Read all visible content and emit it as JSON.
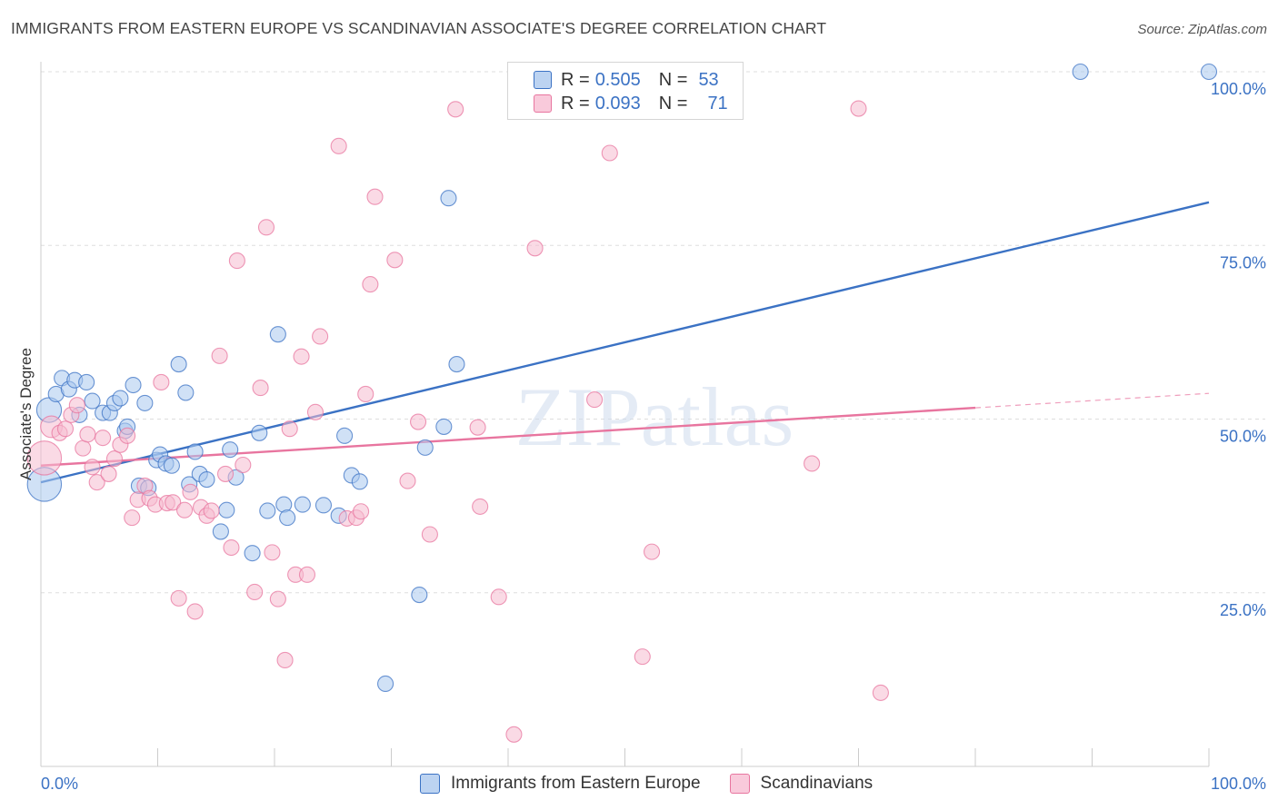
{
  "title": "IMMIGRANTS FROM EASTERN EUROPE VS SCANDINAVIAN ASSOCIATE'S DEGREE CORRELATION CHART",
  "source": "Source: ZipAtlas.com",
  "watermark": "ZIPatlas",
  "colors": {
    "blue": "#3b72c4",
    "blue_fill": "#aac8ee",
    "pink": "#e8759f",
    "pink_fill": "#f6bccf",
    "grid": "#dddddd"
  },
  "legend": {
    "rows": [
      {
        "r_label": "R =",
        "r_value": "0.505",
        "n_label": "N =",
        "n_value": "53",
        "color": "#3b72c4"
      },
      {
        "r_label": "R =",
        "r_value": "0.093",
        "n_label": "N =",
        "n_value": "71",
        "color": "#e8759f"
      }
    ]
  },
  "bottom_legend": [
    {
      "label": "Immigrants from Eastern Europe",
      "color": "#3b72c4"
    },
    {
      "label": "Scandinavians",
      "color": "#e8759f"
    }
  ],
  "chart_data": {
    "type": "scatter",
    "title": "IMMIGRANTS FROM EASTERN EUROPE VS SCANDINAVIAN ASSOCIATE'S DEGREE CORRELATION CHART",
    "xlabel": "",
    "ylabel": "Associate's Degree",
    "xlim": [
      0,
      100
    ],
    "ylim": [
      0,
      100
    ],
    "x_tick_labels": [
      "0.0%",
      "100.0%"
    ],
    "y_ticks": [
      25,
      50,
      75,
      100
    ],
    "y_tick_labels": [
      "25.0%",
      "50.0%",
      "75.0%",
      "100.0%"
    ],
    "grid": true,
    "series": [
      {
        "name": "Immigrants from Eastern Europe",
        "color": "#3b72c4",
        "fill": "#aac8ee",
        "regression": {
          "x0": 0,
          "y0": 40.9,
          "x1": 100,
          "y1": 81.2,
          "solid_until": 100
        },
        "points": [
          [
            0.3,
            40.6,
            2.2
          ],
          [
            0.7,
            51.3,
            1.6
          ],
          [
            1.3,
            53.6,
            1
          ],
          [
            1.8,
            55.9,
            1
          ],
          [
            2.4,
            54.3,
            1
          ],
          [
            2.9,
            55.6,
            1
          ],
          [
            3.3,
            50.6,
            1
          ],
          [
            3.9,
            55.3,
            1
          ],
          [
            4.4,
            52.6,
            1
          ],
          [
            5.3,
            50.9,
            1
          ],
          [
            5.9,
            50.9,
            1
          ],
          [
            6.3,
            52.3,
            1
          ],
          [
            6.8,
            53.0,
            1
          ],
          [
            7.2,
            48.3,
            1
          ],
          [
            7.4,
            48.9,
            1
          ],
          [
            7.9,
            54.9,
            1
          ],
          [
            8.4,
            40.4,
            1
          ],
          [
            8.9,
            52.3,
            1
          ],
          [
            9.2,
            40.1,
            1
          ],
          [
            9.9,
            44.1,
            1
          ],
          [
            10.2,
            44.9,
            1
          ],
          [
            10.7,
            43.6,
            1
          ],
          [
            11.2,
            43.3,
            1
          ],
          [
            11.8,
            57.9,
            1
          ],
          [
            12.4,
            53.8,
            1
          ],
          [
            12.7,
            40.6,
            1
          ],
          [
            13.2,
            45.3,
            1
          ],
          [
            13.6,
            42.1,
            1
          ],
          [
            14.2,
            41.3,
            1
          ],
          [
            15.4,
            33.8,
            1
          ],
          [
            15.9,
            36.9,
            1
          ],
          [
            16.2,
            45.6,
            1
          ],
          [
            16.7,
            41.6,
            1
          ],
          [
            18.1,
            30.7,
            1
          ],
          [
            18.7,
            48.0,
            1
          ],
          [
            19.4,
            36.8,
            1
          ],
          [
            20.3,
            62.2,
            1
          ],
          [
            20.8,
            37.7,
            1
          ],
          [
            21.1,
            35.8,
            1
          ],
          [
            22.4,
            37.7,
            1
          ],
          [
            24.2,
            37.6,
            1
          ],
          [
            25.5,
            36.1,
            1
          ],
          [
            26.0,
            47.6,
            1
          ],
          [
            26.6,
            41.9,
            1
          ],
          [
            27.3,
            41.0,
            1
          ],
          [
            29.5,
            11.9,
            1
          ],
          [
            32.4,
            24.7,
            1
          ],
          [
            32.9,
            45.9,
            1
          ],
          [
            34.5,
            48.9,
            1
          ],
          [
            34.9,
            81.8,
            1
          ],
          [
            35.6,
            57.9,
            1
          ],
          [
            89.0,
            100.0,
            1
          ],
          [
            100.0,
            100.0,
            1
          ]
        ]
      },
      {
        "name": "Scandinavians",
        "color": "#e8759f",
        "fill": "#f6bccf",
        "regression": {
          "x0": 0,
          "y0": 43.3,
          "x1": 100,
          "y1": 53.7,
          "solid_until": 80
        },
        "points": [
          [
            0.3,
            44.4,
            2.2
          ],
          [
            0.9,
            48.9,
            1.4
          ],
          [
            1.6,
            48.0,
            1
          ],
          [
            2.1,
            48.6,
            1
          ],
          [
            2.6,
            50.6,
            1
          ],
          [
            3.1,
            52.0,
            1
          ],
          [
            3.6,
            45.8,
            1
          ],
          [
            4.0,
            47.8,
            1
          ],
          [
            4.4,
            43.1,
            1
          ],
          [
            4.8,
            40.9,
            1
          ],
          [
            5.3,
            47.3,
            1
          ],
          [
            5.8,
            42.1,
            1
          ],
          [
            6.3,
            44.3,
            1
          ],
          [
            6.8,
            46.3,
            1
          ],
          [
            7.4,
            47.6,
            1
          ],
          [
            7.8,
            35.8,
            1
          ],
          [
            8.3,
            38.4,
            1
          ],
          [
            8.9,
            40.4,
            1
          ],
          [
            9.3,
            38.6,
            1
          ],
          [
            9.8,
            37.7,
            1
          ],
          [
            10.3,
            55.3,
            1
          ],
          [
            10.8,
            37.9,
            1
          ],
          [
            11.3,
            38.0,
            1
          ],
          [
            11.8,
            24.2,
            1
          ],
          [
            12.3,
            36.9,
            1
          ],
          [
            12.8,
            39.5,
            1
          ],
          [
            13.2,
            22.3,
            1
          ],
          [
            13.7,
            37.3,
            1
          ],
          [
            14.2,
            36.1,
            1
          ],
          [
            14.6,
            36.8,
            1
          ],
          [
            15.3,
            59.1,
            1
          ],
          [
            15.8,
            42.1,
            1
          ],
          [
            16.3,
            31.5,
            1
          ],
          [
            16.8,
            72.8,
            1
          ],
          [
            17.3,
            43.4,
            1
          ],
          [
            18.3,
            25.1,
            1
          ],
          [
            18.8,
            54.5,
            1
          ],
          [
            19.3,
            77.6,
            1
          ],
          [
            19.8,
            30.8,
            1
          ],
          [
            20.3,
            24.1,
            1
          ],
          [
            20.9,
            15.3,
            1
          ],
          [
            21.3,
            48.6,
            1
          ],
          [
            21.8,
            27.6,
            1
          ],
          [
            22.3,
            59.0,
            1
          ],
          [
            22.8,
            27.6,
            1
          ],
          [
            23.5,
            51.0,
            1
          ],
          [
            23.9,
            61.9,
            1
          ],
          [
            25.5,
            89.3,
            1
          ],
          [
            26.2,
            35.7,
            1
          ],
          [
            27.0,
            35.8,
            1
          ],
          [
            27.4,
            36.7,
            1
          ],
          [
            27.8,
            53.6,
            1
          ],
          [
            28.2,
            69.4,
            1
          ],
          [
            28.6,
            82.0,
            1
          ],
          [
            30.3,
            72.9,
            1
          ],
          [
            31.4,
            41.1,
            1
          ],
          [
            32.3,
            49.6,
            1
          ],
          [
            33.3,
            33.4,
            1
          ],
          [
            35.5,
            94.6,
            1
          ],
          [
            37.4,
            48.8,
            1
          ],
          [
            37.6,
            37.4,
            1
          ],
          [
            39.2,
            24.4,
            1
          ],
          [
            40.5,
            4.6,
            1
          ],
          [
            42.3,
            74.6,
            1
          ],
          [
            47.4,
            52.8,
            1
          ],
          [
            48.7,
            88.3,
            1
          ],
          [
            51.5,
            15.8,
            1
          ],
          [
            52.3,
            30.9,
            1
          ],
          [
            66.0,
            43.6,
            1
          ],
          [
            70.0,
            94.7,
            1
          ],
          [
            71.9,
            10.6,
            1
          ]
        ]
      }
    ]
  }
}
